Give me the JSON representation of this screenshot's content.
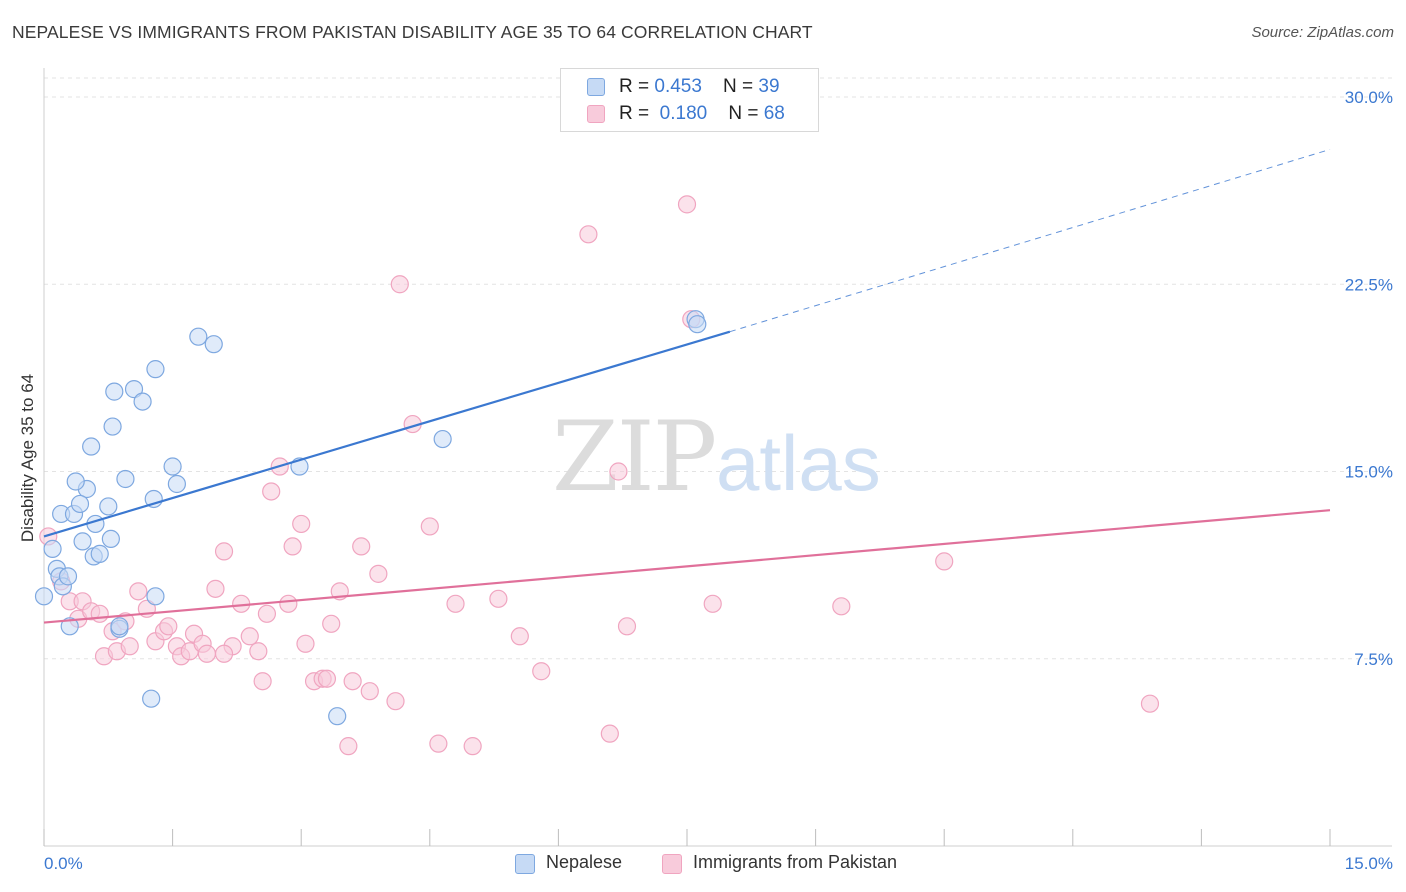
{
  "title": "NEPALESE VS IMMIGRANTS FROM PAKISTAN DISABILITY AGE 35 TO 64 CORRELATION CHART",
  "source": "Source: ZipAtlas.com",
  "watermark": {
    "zip": "ZIP",
    "atlas": "atlas"
  },
  "colors": {
    "blue": "#3b78d0",
    "blue_fill": "#c6daf5",
    "blue_stroke": "#7ea8e0",
    "pink": "#e0709a",
    "pink_fill": "#f8cbdb",
    "pink_stroke": "#f0a5c0",
    "grid": "#e3e3e3",
    "tick_label": "#3b78d0"
  },
  "legend": {
    "rows": [
      {
        "r_label": "R = ",
        "r_value": "0.453",
        "n_label": "N = ",
        "n_value": "39"
      },
      {
        "r_label": "R = ",
        "r_value": "0.180",
        "n_label": "N = ",
        "n_value": "68"
      }
    ]
  },
  "bottom_legend": {
    "series1": "Nepalese",
    "series2": "Immigrants from Pakistan"
  },
  "chart_data": {
    "type": "scatter",
    "title": "NEPALESE VS IMMIGRANTS FROM PAKISTAN DISABILITY AGE 35 TO 64 CORRELATION CHART",
    "xlabel": "",
    "ylabel": "Disability Age 35 to 64",
    "xlim": [
      0,
      15
    ],
    "ylim": [
      0,
      31.5
    ],
    "x_tick_labels": [
      "0.0%",
      "15.0%"
    ],
    "y_ticks": [
      7.5,
      15.0,
      22.5,
      30.0
    ],
    "y_tick_labels": [
      "7.5%",
      "15.0%",
      "22.5%",
      "30.0%"
    ],
    "grid": true,
    "legend_position": "top-center",
    "series": [
      {
        "name": "Nepalese",
        "R": 0.453,
        "N": 39,
        "trend": {
          "x0": 0.0,
          "y0": 12.4,
          "x1": 8.0,
          "y1": 20.6,
          "dashed_to_x": 15.0,
          "dashed_to_y": 27.9
        },
        "points": [
          [
            0.0,
            10.0
          ],
          [
            0.1,
            11.9
          ],
          [
            0.15,
            11.1
          ],
          [
            0.18,
            10.8
          ],
          [
            0.22,
            10.4
          ],
          [
            0.28,
            10.8
          ],
          [
            0.2,
            13.3
          ],
          [
            0.35,
            13.3
          ],
          [
            0.3,
            8.8
          ],
          [
            0.45,
            12.2
          ],
          [
            0.58,
            11.6
          ],
          [
            0.65,
            11.7
          ],
          [
            0.5,
            14.3
          ],
          [
            0.42,
            13.7
          ],
          [
            0.37,
            14.6
          ],
          [
            0.6,
            12.9
          ],
          [
            0.75,
            13.6
          ],
          [
            0.78,
            12.3
          ],
          [
            0.95,
            14.7
          ],
          [
            1.28,
            13.9
          ],
          [
            0.88,
            8.7
          ],
          [
            0.55,
            16.0
          ],
          [
            0.8,
            16.8
          ],
          [
            0.82,
            18.2
          ],
          [
            1.05,
            18.3
          ],
          [
            1.15,
            17.8
          ],
          [
            1.3,
            19.1
          ],
          [
            1.5,
            15.2
          ],
          [
            1.55,
            14.5
          ],
          [
            1.8,
            20.4
          ],
          [
            1.98,
            20.1
          ],
          [
            1.3,
            10.0
          ],
          [
            1.25,
            5.9
          ],
          [
            2.98,
            15.2
          ],
          [
            4.65,
            16.3
          ],
          [
            7.6,
            21.1
          ],
          [
            7.62,
            20.9
          ],
          [
            3.42,
            5.2
          ],
          [
            0.88,
            8.8
          ]
        ]
      },
      {
        "name": "Immigrants from Pakistan",
        "R": 0.18,
        "N": 68,
        "trend": {
          "x0": 0.0,
          "y0": 8.95,
          "x1": 15.0,
          "y1": 13.45
        },
        "points": [
          [
            0.05,
            12.4
          ],
          [
            0.2,
            10.6
          ],
          [
            0.3,
            9.8
          ],
          [
            0.4,
            9.1
          ],
          [
            0.45,
            9.8
          ],
          [
            0.55,
            9.4
          ],
          [
            0.65,
            9.3
          ],
          [
            0.7,
            7.6
          ],
          [
            0.8,
            8.6
          ],
          [
            0.85,
            7.8
          ],
          [
            0.95,
            9.0
          ],
          [
            1.0,
            8.0
          ],
          [
            1.1,
            10.2
          ],
          [
            1.2,
            9.5
          ],
          [
            1.3,
            8.2
          ],
          [
            1.4,
            8.6
          ],
          [
            1.45,
            8.8
          ],
          [
            1.55,
            8.0
          ],
          [
            1.6,
            7.6
          ],
          [
            1.7,
            7.8
          ],
          [
            1.75,
            8.5
          ],
          [
            1.85,
            8.1
          ],
          [
            1.9,
            7.7
          ],
          [
            2.0,
            10.3
          ],
          [
            2.1,
            11.8
          ],
          [
            2.2,
            8.0
          ],
          [
            2.3,
            9.7
          ],
          [
            2.4,
            8.4
          ],
          [
            2.5,
            7.8
          ],
          [
            2.55,
            6.6
          ],
          [
            2.6,
            9.3
          ],
          [
            2.65,
            14.2
          ],
          [
            2.75,
            15.2
          ],
          [
            2.85,
            9.7
          ],
          [
            2.9,
            12.0
          ],
          [
            3.0,
            12.9
          ],
          [
            3.05,
            8.1
          ],
          [
            3.15,
            6.6
          ],
          [
            3.25,
            6.7
          ],
          [
            3.3,
            6.7
          ],
          [
            3.35,
            8.9
          ],
          [
            3.45,
            10.2
          ],
          [
            3.55,
            4.0
          ],
          [
            3.6,
            6.6
          ],
          [
            3.7,
            12.0
          ],
          [
            3.8,
            6.2
          ],
          [
            3.9,
            10.9
          ],
          [
            4.1,
            5.8
          ],
          [
            4.15,
            22.5
          ],
          [
            4.3,
            16.9
          ],
          [
            4.5,
            12.8
          ],
          [
            4.6,
            4.1
          ],
          [
            4.8,
            9.7
          ],
          [
            5.0,
            4.0
          ],
          [
            5.3,
            9.9
          ],
          [
            5.55,
            8.4
          ],
          [
            5.8,
            7.0
          ],
          [
            6.35,
            24.5
          ],
          [
            6.6,
            4.5
          ],
          [
            6.7,
            15.0
          ],
          [
            6.8,
            8.8
          ],
          [
            7.5,
            25.7
          ],
          [
            7.55,
            21.1
          ],
          [
            7.8,
            9.7
          ],
          [
            9.3,
            9.6
          ],
          [
            10.5,
            11.4
          ],
          [
            12.9,
            5.7
          ],
          [
            2.1,
            7.7
          ]
        ]
      }
    ]
  }
}
